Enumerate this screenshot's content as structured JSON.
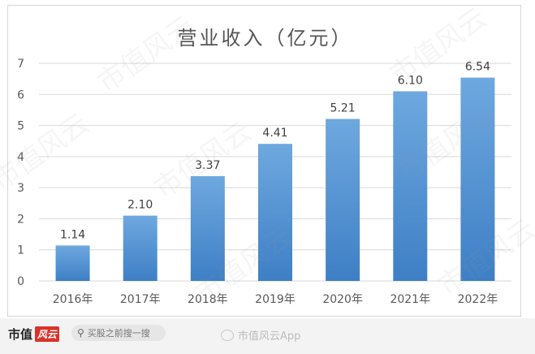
{
  "chart_data": {
    "type": "bar",
    "title": "营业收入（亿元）",
    "categories": [
      "2016年",
      "2017年",
      "2018年",
      "2019年",
      "2020年",
      "2021年",
      "2022年"
    ],
    "values": [
      1.14,
      2.1,
      3.37,
      4.41,
      5.21,
      6.1,
      6.54
    ],
    "data_labels": [
      "1.14",
      "2.10",
      "3.37",
      "4.41",
      "5.21",
      "6.10",
      "6.54"
    ],
    "ylim": [
      0,
      7
    ],
    "yticks": [
      0,
      1,
      2,
      3,
      4,
      5,
      6,
      7
    ],
    "xlabel": "",
    "ylabel": "",
    "grid": true,
    "bar_color": "#5a9bd8",
    "bar_color_dark": "#3f7fc6"
  },
  "watermark_text": "市值风云",
  "footer": {
    "brand_text": "市值",
    "brand_badge": "风云",
    "search_placeholder": "买股之前搜一搜",
    "weibo_text": "市值风云App"
  }
}
